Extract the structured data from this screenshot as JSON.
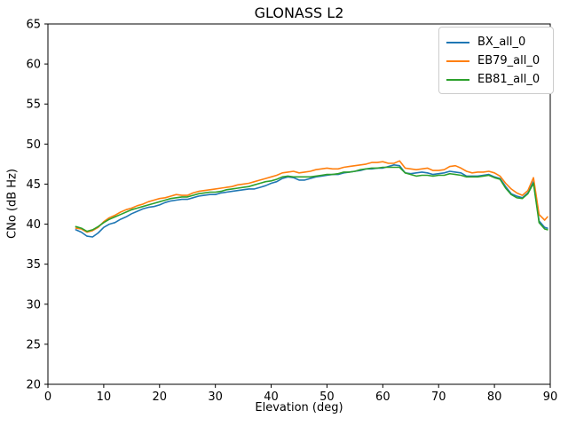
{
  "figure": {
    "background": "#ffffff",
    "axes_edge_color": "#000000",
    "legend_border_color": "#cccccc"
  },
  "chart_data": {
    "type": "line",
    "title": "GLONASS L2",
    "xlabel": "Elevation (deg)",
    "ylabel": "CNo (dB Hz)",
    "xlim": [
      0,
      90
    ],
    "ylim": [
      20,
      65
    ],
    "xticks": [
      0,
      10,
      20,
      30,
      40,
      50,
      60,
      70,
      80,
      90
    ],
    "yticks": [
      20,
      25,
      30,
      35,
      40,
      45,
      50,
      55,
      60,
      65
    ],
    "grid": false,
    "legend_position": "upper right",
    "x": [
      5,
      6,
      7,
      8,
      9,
      10,
      11,
      12,
      13,
      14,
      15,
      16,
      17,
      18,
      19,
      20,
      21,
      22,
      23,
      24,
      25,
      26,
      27,
      28,
      29,
      30,
      31,
      32,
      33,
      34,
      35,
      36,
      37,
      38,
      39,
      40,
      41,
      42,
      43,
      44,
      45,
      46,
      47,
      48,
      49,
      50,
      51,
      52,
      53,
      54,
      55,
      56,
      57,
      58,
      59,
      60,
      61,
      62,
      63,
      64,
      65,
      66,
      67,
      68,
      69,
      70,
      71,
      72,
      73,
      74,
      75,
      76,
      77,
      78,
      79,
      80,
      81,
      82,
      83,
      84,
      85,
      86,
      87,
      88,
      89,
      89.5
    ],
    "series": [
      {
        "name": "BX_all_0",
        "color": "#1f77b4",
        "values": [
          39.3,
          39.0,
          38.5,
          38.4,
          38.9,
          39.6,
          40.0,
          40.2,
          40.6,
          40.9,
          41.3,
          41.6,
          41.9,
          42.1,
          42.2,
          42.4,
          42.7,
          42.9,
          43.0,
          43.1,
          43.1,
          43.3,
          43.5,
          43.6,
          43.7,
          43.7,
          43.9,
          44.0,
          44.1,
          44.2,
          44.3,
          44.4,
          44.4,
          44.6,
          44.8,
          45.1,
          45.3,
          45.7,
          45.9,
          45.8,
          45.5,
          45.5,
          45.7,
          45.9,
          46.0,
          46.1,
          46.2,
          46.2,
          46.4,
          46.5,
          46.6,
          46.7,
          46.9,
          46.9,
          47.0,
          47.0,
          47.2,
          47.4,
          47.3,
          46.4,
          46.3,
          46.4,
          46.5,
          46.4,
          46.2,
          46.3,
          46.4,
          46.6,
          46.5,
          46.4,
          46.0,
          46.0,
          46.0,
          46.1,
          46.2,
          45.9,
          45.7,
          44.7,
          43.8,
          43.5,
          43.3,
          43.9,
          45.3,
          40.4,
          39.6,
          39.5
        ]
      },
      {
        "name": "EB79_all_0",
        "color": "#ff7f0e",
        "values": [
          39.5,
          39.4,
          39.0,
          39.2,
          39.6,
          40.3,
          40.8,
          41.1,
          41.5,
          41.8,
          42.0,
          42.3,
          42.5,
          42.8,
          43.0,
          43.2,
          43.3,
          43.5,
          43.7,
          43.6,
          43.6,
          43.9,
          44.1,
          44.2,
          44.3,
          44.4,
          44.5,
          44.6,
          44.7,
          44.9,
          45.0,
          45.1,
          45.3,
          45.5,
          45.7,
          45.9,
          46.1,
          46.4,
          46.5,
          46.6,
          46.4,
          46.5,
          46.6,
          46.8,
          46.9,
          47.0,
          46.9,
          46.9,
          47.1,
          47.2,
          47.3,
          47.4,
          47.5,
          47.7,
          47.7,
          47.8,
          47.6,
          47.6,
          47.9,
          47.0,
          46.9,
          46.8,
          46.9,
          47.0,
          46.7,
          46.7,
          46.8,
          47.2,
          47.3,
          47.0,
          46.6,
          46.4,
          46.5,
          46.5,
          46.6,
          46.4,
          46.0,
          45.1,
          44.4,
          43.9,
          43.6,
          44.2,
          45.8,
          41.2,
          40.5,
          40.9
        ]
      },
      {
        "name": "EB81_all_0",
        "color": "#2ca02c",
        "values": [
          39.7,
          39.5,
          39.1,
          39.3,
          39.7,
          40.2,
          40.6,
          40.9,
          41.2,
          41.5,
          41.8,
          42.0,
          42.2,
          42.4,
          42.6,
          42.8,
          43.0,
          43.2,
          43.3,
          43.4,
          43.4,
          43.6,
          43.8,
          43.9,
          44.0,
          44.0,
          44.1,
          44.3,
          44.4,
          44.5,
          44.6,
          44.7,
          44.9,
          45.1,
          45.3,
          45.4,
          45.6,
          45.9,
          46.0,
          45.9,
          45.9,
          45.9,
          45.9,
          46.0,
          46.1,
          46.2,
          46.2,
          46.3,
          46.5,
          46.5,
          46.6,
          46.8,
          46.9,
          47.0,
          47.0,
          47.1,
          47.1,
          47.1,
          47.1,
          46.4,
          46.2,
          46.0,
          46.1,
          46.1,
          46.0,
          46.1,
          46.1,
          46.3,
          46.2,
          46.1,
          45.9,
          45.9,
          45.9,
          46.0,
          46.1,
          45.8,
          45.6,
          44.5,
          43.7,
          43.3,
          43.2,
          43.8,
          45.1,
          40.2,
          39.4,
          39.3
        ]
      }
    ]
  }
}
